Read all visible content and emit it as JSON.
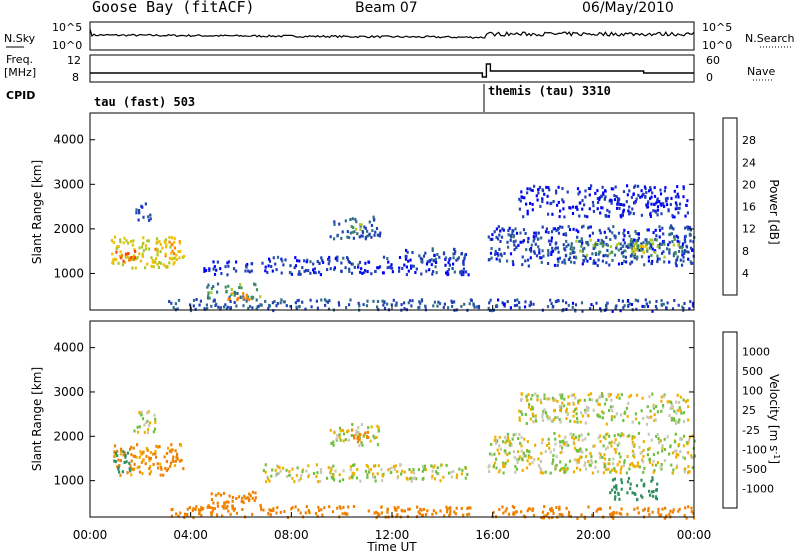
{
  "header": {
    "station": "Goose Bay (fitACF)",
    "beam": "Beam 07",
    "date": "06/May/2010"
  },
  "aux_panel": {
    "left_labels": [
      "N.Sky",
      "Freq.",
      "[MHz]",
      "CPID"
    ],
    "right_labels": [
      "N.Search",
      "Nave"
    ],
    "noise_ticks_left": [
      "10^5",
      "10^0"
    ],
    "noise_ticks_right": [
      "10^5",
      "10^0"
    ],
    "freq_ticks": [
      "12",
      "8"
    ],
    "nave_ticks": [
      "60",
      "0"
    ],
    "cpid_segments": [
      {
        "label": "tau (fast) 503",
        "start_hour": 0
      },
      {
        "label": "themis (tau) 3310",
        "start_hour": 15.75
      }
    ],
    "freq_level": 10.5,
    "freq_jump_hour": 15.75
  },
  "colors": {
    "power": [
      "#0000ff",
      "#1f3fb7",
      "#2f6a8a",
      "#3f8f5f",
      "#a8c828",
      "#f0c000",
      "#ff8000",
      "#ff4000",
      "#ff0000"
    ],
    "velocity": [
      "#e00000",
      "#f05000",
      "#f08000",
      "#f0b000",
      "#c8c8b4",
      "#c8c8b4",
      "#70c040",
      "#2f8f5f",
      "#1f5fa0",
      "#1020c0"
    ],
    "groundscatter": "#a0a0a0"
  },
  "chart_data": [
    {
      "type": "heatmap",
      "name": "power",
      "xlabel": "",
      "ylabel": "Slant Range [km]",
      "x_range_hours": [
        0,
        24
      ],
      "ylim": [
        180,
        4600
      ],
      "yticks": [
        1000,
        2000,
        3000,
        4000
      ],
      "colorbar_label": "Power [dB]",
      "colorbar_ticks": [
        "28",
        "24",
        "20",
        "16",
        "12",
        "8",
        "4"
      ],
      "regions": [
        {
          "t0": 0.8,
          "t1": 3.7,
          "r0": 1150,
          "r1": 1850,
          "level": 20
        },
        {
          "t0": 1.0,
          "t1": 1.8,
          "r0": 1300,
          "r1": 1600,
          "level": 28
        },
        {
          "t0": 2.5,
          "t1": 3.6,
          "r0": 1350,
          "r1": 1750,
          "level": 24
        },
        {
          "t0": 1.8,
          "t1": 2.5,
          "r0": 2200,
          "r1": 2600,
          "level": 6
        },
        {
          "t0": 4.6,
          "t1": 6.8,
          "r0": 450,
          "r1": 800,
          "level": 14
        },
        {
          "t0": 5.3,
          "t1": 6.5,
          "r0": 430,
          "r1": 600,
          "level": 24
        },
        {
          "t0": 4.5,
          "t1": 6.5,
          "r0": 1000,
          "r1": 1300,
          "level": 4
        },
        {
          "t0": 6.8,
          "t1": 15.0,
          "r0": 1000,
          "r1": 1400,
          "level": 5
        },
        {
          "t0": 9.5,
          "t1": 11.5,
          "r0": 1800,
          "r1": 2300,
          "level": 8
        },
        {
          "t0": 10.3,
          "t1": 11.0,
          "r0": 1950,
          "r1": 2150,
          "level": 16
        },
        {
          "t0": 12.5,
          "t1": 15.0,
          "r0": 1300,
          "r1": 1600,
          "level": 6
        },
        {
          "t0": 3.0,
          "t1": 15.5,
          "r0": 200,
          "r1": 450,
          "level": 8
        },
        {
          "t0": 15.8,
          "t1": 24.0,
          "r0": 180,
          "r1": 450,
          "level": 6
        },
        {
          "t0": 15.8,
          "t1": 24.0,
          "r0": 1200,
          "r1": 2100,
          "level": 6
        },
        {
          "t0": 19.0,
          "t1": 23.5,
          "r0": 1400,
          "r1": 1800,
          "level": 14
        },
        {
          "t0": 17.0,
          "t1": 23.8,
          "r0": 2300,
          "r1": 3000,
          "level": 4
        },
        {
          "t0": 21.5,
          "t1": 22.5,
          "r0": 1500,
          "r1": 1700,
          "level": 20
        }
      ]
    },
    {
      "type": "heatmap",
      "name": "velocity",
      "xlabel": "Time UT",
      "ylabel": "Slant Range [km]",
      "x_range_hours": [
        0,
        24
      ],
      "xticks": [
        "00:00",
        "04:00",
        "08:00",
        "12:00",
        "16:00",
        "20:00",
        "00:00"
      ],
      "ylim": [
        180,
        4600
      ],
      "yticks": [
        1000,
        2000,
        3000,
        4000
      ],
      "colorbar_label": "Velocity [m s^-1]",
      "colorbar_ticks": [
        "1000",
        "500",
        "100",
        "25",
        "-25",
        "-100",
        "-500",
        "-1000"
      ],
      "regions": [
        {
          "t0": 0.8,
          "t1": 3.7,
          "r0": 1150,
          "r1": 1850,
          "level": -150
        },
        {
          "t0": 0.9,
          "t1": 1.6,
          "r0": 1200,
          "r1": 1700,
          "level": 200
        },
        {
          "t0": 1.6,
          "t1": 2.6,
          "r0": 2100,
          "r1": 2600,
          "level": 0
        },
        {
          "t0": 4.5,
          "t1": 6.8,
          "r0": 400,
          "r1": 800,
          "level": -400
        },
        {
          "t0": 3.0,
          "t1": 15.5,
          "r0": 200,
          "r1": 450,
          "level": -300
        },
        {
          "t0": 9.5,
          "t1": 11.5,
          "r0": 1800,
          "r1": 2300,
          "level": 0
        },
        {
          "t0": 10.3,
          "t1": 11.2,
          "r0": 1900,
          "r1": 2200,
          "level": -200
        },
        {
          "t0": 6.8,
          "t1": 15.0,
          "r0": 1000,
          "r1": 1400,
          "level": 0
        },
        {
          "t0": 15.8,
          "t1": 24.0,
          "r0": 1200,
          "r1": 2100,
          "level": 0
        },
        {
          "t0": 17.0,
          "t1": 23.8,
          "r0": 2300,
          "r1": 3000,
          "level": 0
        },
        {
          "t0": 15.8,
          "t1": 24.0,
          "r0": 180,
          "r1": 450,
          "level": -200
        },
        {
          "t0": 20.5,
          "t1": 22.5,
          "r0": 600,
          "r1": 1100,
          "level": 300
        }
      ]
    }
  ]
}
